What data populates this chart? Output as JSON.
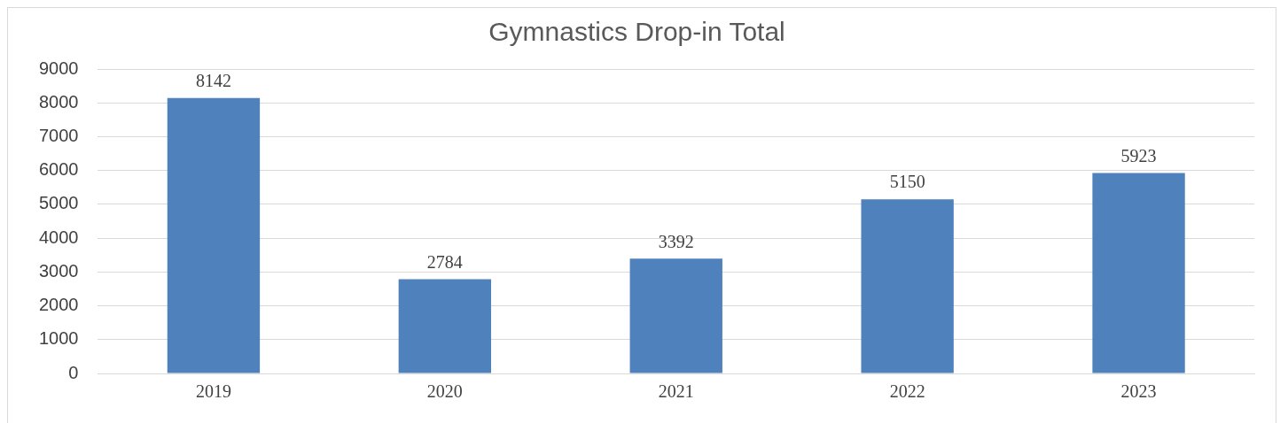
{
  "chart_data": {
    "type": "bar",
    "title": "Gymnastics Drop-in Total",
    "categories": [
      "2019",
      "2020",
      "2021",
      "2022",
      "2023"
    ],
    "values": [
      8142,
      2784,
      3392,
      5150,
      5923
    ],
    "color": "#4f81bd",
    "ylim": [
      0,
      9000
    ],
    "yticks": [
      0,
      1000,
      2000,
      3000,
      4000,
      5000,
      6000,
      7000,
      8000,
      9000
    ],
    "grid": "y",
    "data_labels": true,
    "legend": false
  }
}
